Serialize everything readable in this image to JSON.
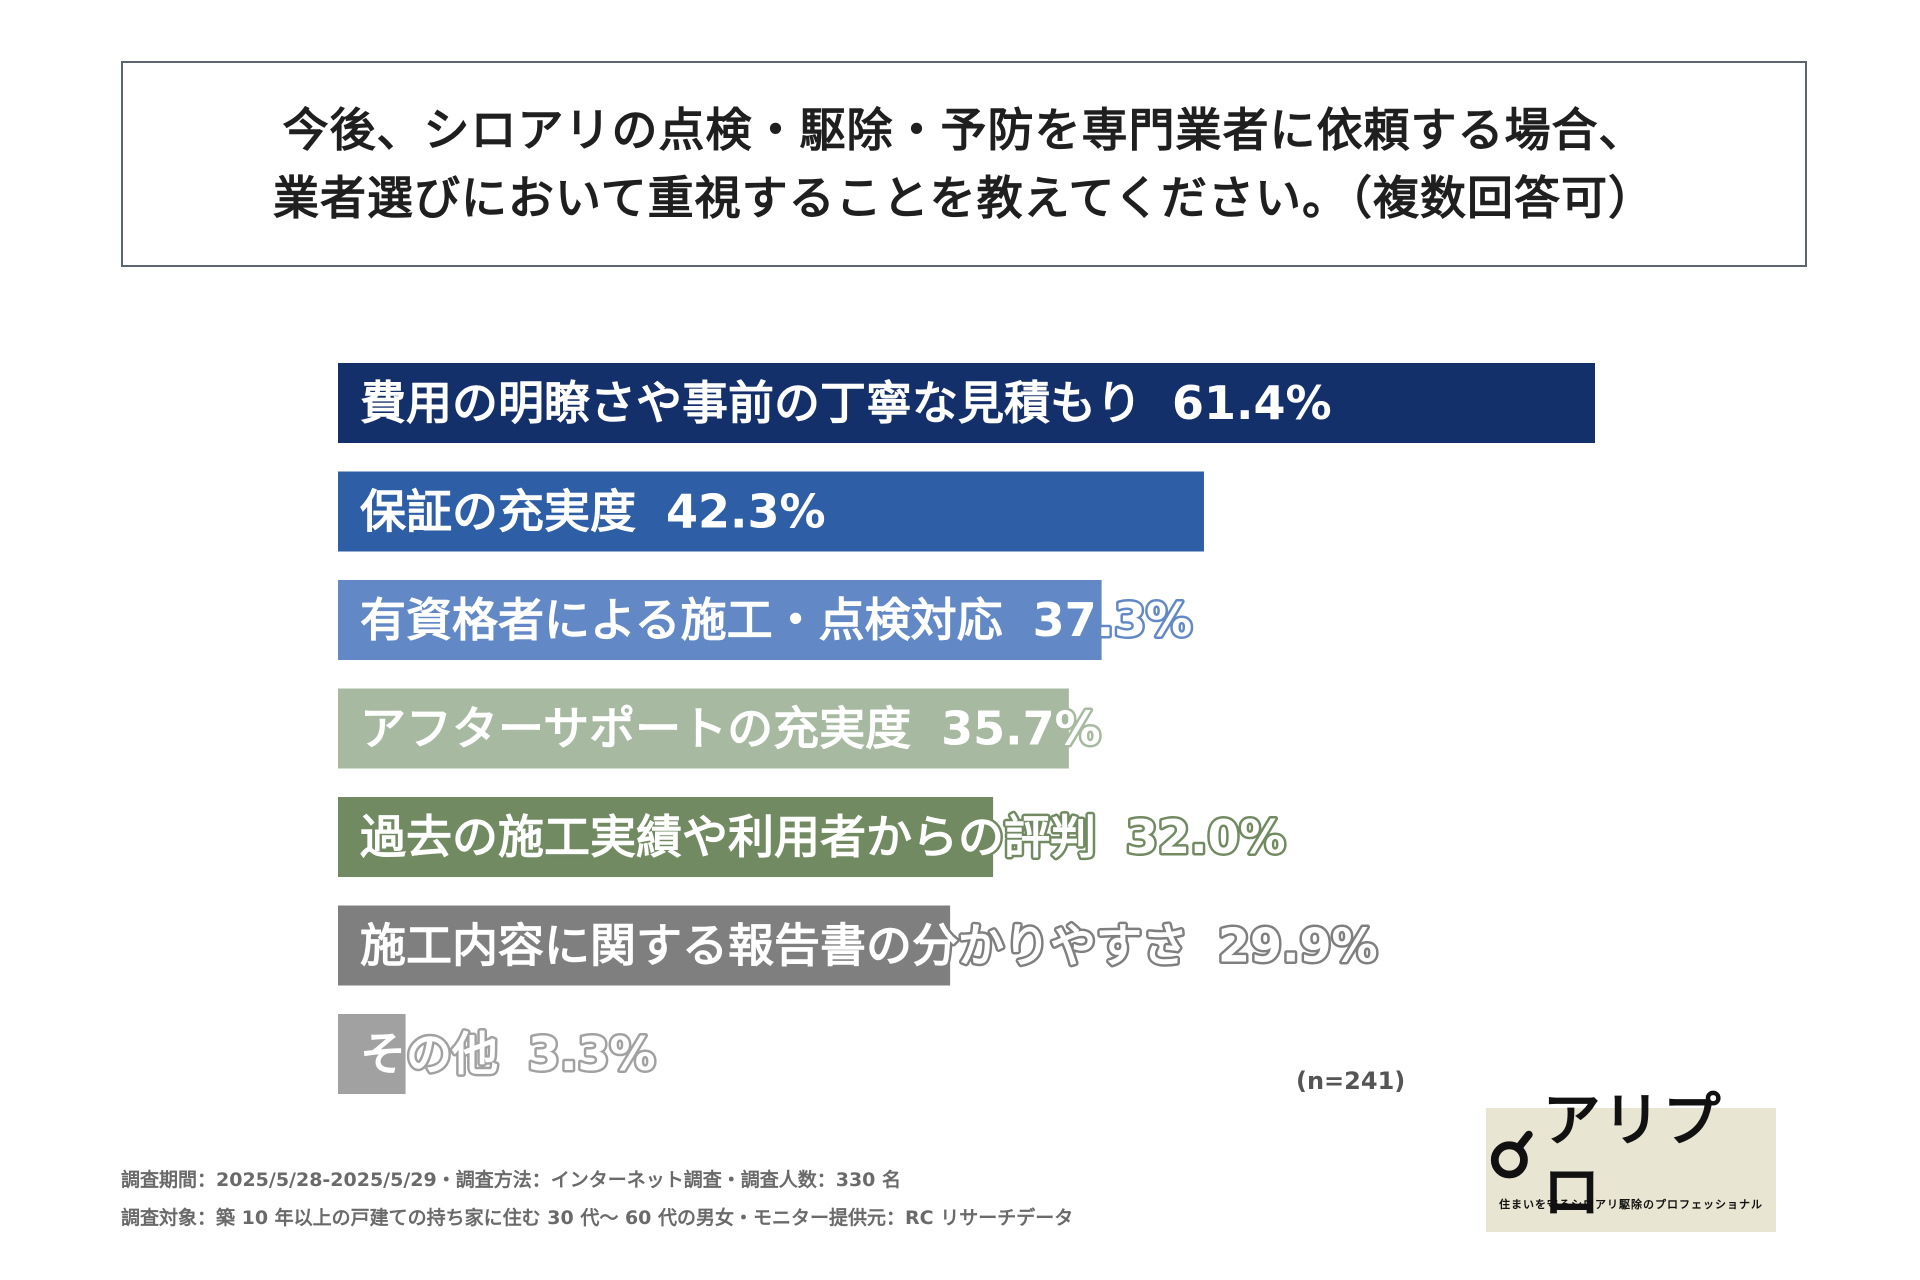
{
  "title": {
    "line1": "今後、シロアリの点検・駆除・予防を専門業者に依頼する場合、",
    "line2": "業者選びにおいて重視することを教えてください。（複数回答可）"
  },
  "chart_data": {
    "type": "bar",
    "orientation": "horizontal",
    "xlim": [
      0,
      61.4
    ],
    "categories": [
      "費用の明瞭さや事前の丁寧な見積もり",
      "保証の充実度",
      "有資格者による施工・点検対応",
      "アフターサポートの充実度",
      "過去の施工実績や利用者からの評判",
      "施工内容に関する報告書の分かりやすさ",
      "その他"
    ],
    "values": [
      61.4,
      42.3,
      37.3,
      35.7,
      32.0,
      29.9,
      3.3
    ],
    "value_labels": [
      "61.4%",
      "42.3%",
      "37.3%",
      "35.7%",
      "32.0%",
      "29.9%",
      "3.3%"
    ],
    "colors": [
      "#14306b",
      "#2e5ea5",
      "#6289c5",
      "#a7b9a0",
      "#718a61",
      "#7f7f7f",
      "#a1a1a1"
    ],
    "grid": false,
    "legend": "none"
  },
  "sample_size": "(n=241)",
  "footnotes": {
    "line1": "調査期間：2025/5/28-2025/5/29・調査方法：インターネット調査・調査人数：330 名",
    "line2": "調査対象：築 10 年以上の戸建ての持ち家に住む 30 代〜 60 代の男女・モニター提供元：RC リサーチデータ"
  },
  "logo": {
    "text": "アリプロ",
    "tagline": "住まいを守るシロアリ駆除のプロフェッショナル",
    "icon": "magnifier-icon"
  }
}
